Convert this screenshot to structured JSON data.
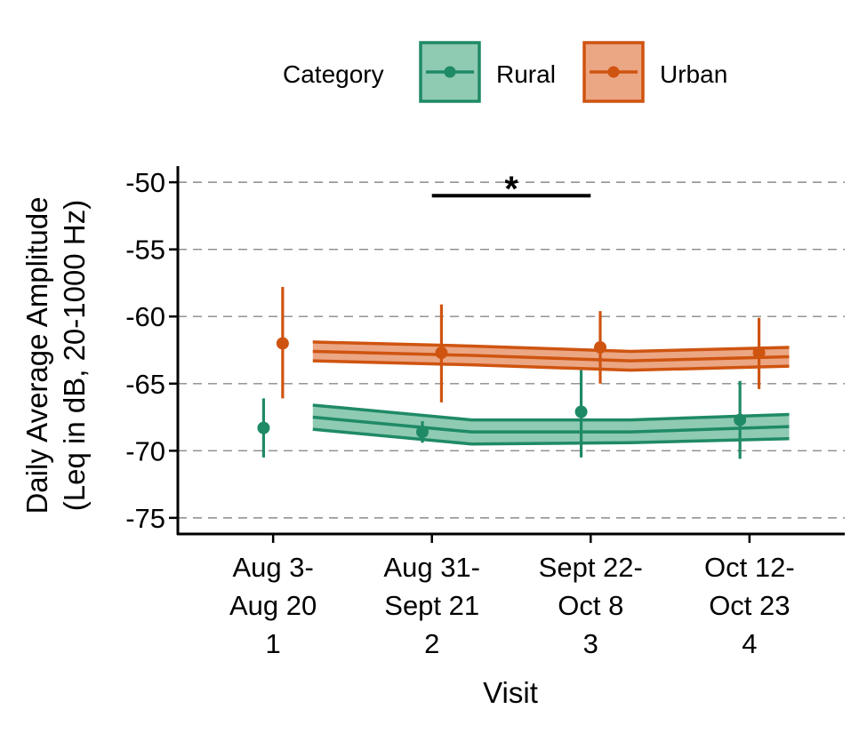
{
  "chart_data": {
    "type": "line",
    "x": [
      1,
      2,
      3,
      4
    ],
    "x_tick_labels": [
      [
        "Aug 3-",
        "Aug 20",
        "1"
      ],
      [
        "Aug 31-",
        "Sept 21",
        "2"
      ],
      [
        "Sept 22-",
        "Oct 8",
        "3"
      ],
      [
        "Oct 12-",
        "Oct 23",
        "4"
      ]
    ],
    "xlabel": "Visit",
    "ylabel_lines": [
      "Daily Average Amplitude",
      "(Leq in dB, 20-1000 Hz)"
    ],
    "ylim": [
      -76.2,
      -48.8
    ],
    "xlim": [
      0.4,
      4.6
    ],
    "y_ticks": [
      -75,
      -70,
      -65,
      -60,
      -55,
      -50
    ],
    "y_tick_labels": [
      "-75",
      "-70",
      "-65",
      "-60",
      "-55",
      "-50"
    ],
    "grid": "horizontal dashed",
    "legend": {
      "title": "Category",
      "placement": "top",
      "entries": [
        "Rural",
        "Urban"
      ]
    },
    "colors": {
      "Rural": "#1f8a66",
      "Rural_fill": "#8fcab3",
      "Urban": "#cf5410",
      "Urban_fill": "#eba684"
    },
    "series": [
      {
        "name": "Rural",
        "points": [
          {
            "x": 0.94,
            "y": -68.3,
            "lo": -70.5,
            "hi": -66.1
          },
          {
            "x": 1.94,
            "y": -68.6,
            "lo": -69.4,
            "hi": -67.8
          },
          {
            "x": 2.94,
            "y": -67.1,
            "lo": -70.5,
            "hi": -64.0
          },
          {
            "x": 3.94,
            "y": -67.7,
            "lo": -70.6,
            "hi": -64.8
          }
        ],
        "trend": [
          {
            "x": 1.25,
            "y": -67.5,
            "lo": -68.4,
            "hi": -66.6
          },
          {
            "x": 2.25,
            "y": -68.6,
            "lo": -69.5,
            "hi": -67.7
          },
          {
            "x": 3.25,
            "y": -68.6,
            "lo": -69.4,
            "hi": -67.7
          },
          {
            "x": 4.25,
            "y": -68.2,
            "lo": -69.1,
            "hi": -67.3
          }
        ]
      },
      {
        "name": "Urban",
        "points": [
          {
            "x": 1.06,
            "y": -62.0,
            "lo": -66.1,
            "hi": -57.8
          },
          {
            "x": 2.06,
            "y": -62.7,
            "lo": -66.4,
            "hi": -59.1
          },
          {
            "x": 3.06,
            "y": -62.3,
            "lo": -65.0,
            "hi": -59.6
          },
          {
            "x": 4.06,
            "y": -62.7,
            "lo": -65.4,
            "hi": -60.1
          }
        ],
        "trend": [
          {
            "x": 1.25,
            "y": -62.6,
            "lo": -63.3,
            "hi": -61.9
          },
          {
            "x": 2.25,
            "y": -62.9,
            "lo": -63.6,
            "hi": -62.2
          },
          {
            "x": 3.25,
            "y": -63.3,
            "lo": -64.0,
            "hi": -62.6
          },
          {
            "x": 4.25,
            "y": -63.0,
            "lo": -63.7,
            "hi": -62.3
          }
        ]
      }
    ],
    "annotations": [
      {
        "type": "significance",
        "label": "*",
        "x_start": 2,
        "x_end": 3,
        "y": -51.0
      }
    ]
  }
}
